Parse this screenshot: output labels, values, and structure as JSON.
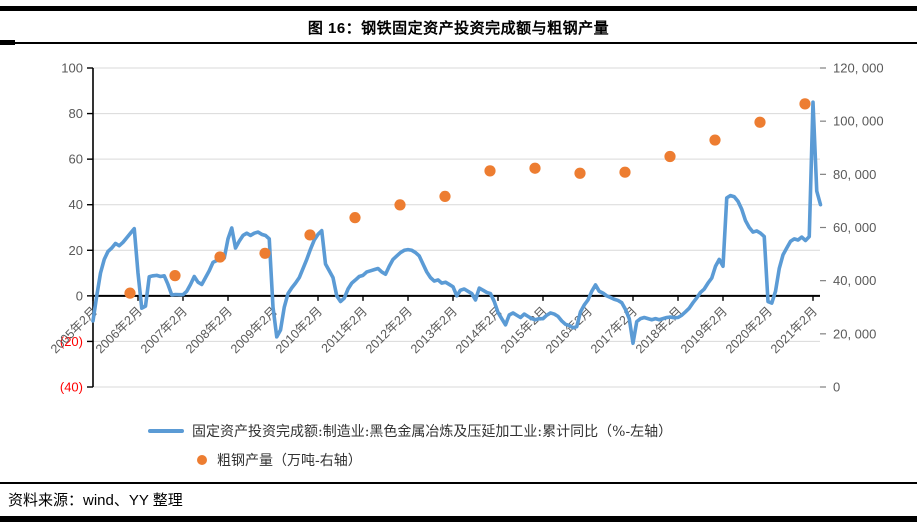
{
  "page": {
    "title": "图 16：钢铁固定资产投资完成额与粗钢产量",
    "source": "资料来源：wind、YY 整理"
  },
  "legend": {
    "line_label": "固定资产投资完成额:制造业:黑色金属冶炼及压延加工业:累计同比（%-左轴）",
    "dot_label": "粗钢产量（万吨-右轴）"
  },
  "colors": {
    "line": "#5B9BD5",
    "dot": "#ED7D31",
    "axis_text": "#595959",
    "negative_text": "#FF0000",
    "gridline": "#D9D9D9",
    "axis_line": "#000000",
    "right_tick": "#808080"
  },
  "chart_data": {
    "type": "line+scatter",
    "title": "图 16：钢铁固定资产投资完成额与粗钢产量",
    "grid": "horizontal",
    "left_axis": {
      "min": -40,
      "max": 100,
      "step": 20,
      "tick_labels": [
        "100",
        "80",
        "60",
        "40",
        "20",
        "0",
        "(20)",
        "(40)"
      ],
      "negative_in_red_parentheses": true
    },
    "right_axis": {
      "min": 0,
      "max": 120000,
      "step": 20000,
      "tick_labels": [
        "120, 000",
        "100, 000",
        "80, 000",
        "60, 000",
        "40, 000",
        "20, 000",
        "0"
      ]
    },
    "x_tick_labels": [
      "2005年2月",
      "2006年2月",
      "2007年2月",
      "2008年2月",
      "2009年2月",
      "2010年2月",
      "2011年2月",
      "2012年2月",
      "2013年2月",
      "2014年2月",
      "2015年2月",
      "2016年2月",
      "2017年2月",
      "2018年2月",
      "2019年2月",
      "2020年2月",
      "2021年2月"
    ],
    "line_series": {
      "name": "固定资产投资完成额:制造业:黑色金属冶炼及压延加工业:累计同比（%-左轴）",
      "axis": "left",
      "start": "2005-02",
      "freq": "monthly",
      "values": [
        -11,
        0,
        10,
        16,
        19.5,
        21,
        23,
        22,
        23.5,
        25.5,
        27.5,
        29.5,
        10,
        -5.4,
        -4.5,
        8.4,
        8.8,
        9,
        8.5,
        8.8,
        5,
        0.4,
        0.6,
        0.5,
        0.5,
        2,
        5,
        8.5,
        6,
        5,
        8,
        11,
        14.7,
        15.5,
        16,
        16.6,
        25,
        29.8,
        21,
        24,
        26.5,
        27.5,
        26.5,
        27.5,
        28,
        27,
        26.5,
        25,
        -5,
        -18,
        -15,
        -5,
        1,
        3.5,
        5.6,
        8,
        12,
        16,
        20.5,
        24.5,
        27,
        28.6,
        14,
        11,
        8,
        0,
        -2.5,
        -1,
        3,
        5.6,
        7,
        8.5,
        9,
        10.5,
        11,
        11.5,
        12,
        10.5,
        9.5,
        13,
        16,
        17.5,
        19,
        20,
        20.3,
        20,
        19,
        17.5,
        14,
        10.5,
        8,
        6.5,
        7,
        5.6,
        6,
        5,
        4,
        0,
        2.5,
        3,
        2,
        1,
        -1.8,
        3.4,
        2.5,
        1.5,
        1,
        -2.5,
        -7.3,
        -10,
        -12.7,
        -8.4,
        -7.5,
        -8.5,
        -9.5,
        -8,
        -9,
        -10,
        -10.5,
        -10,
        -10,
        -8.5,
        -7.5,
        -8,
        -9,
        -11,
        -12.5,
        -13,
        -14,
        -13.5,
        -7,
        -4,
        -1.8,
        2,
        4.8,
        2,
        1.2,
        0,
        -0.7,
        -1.5,
        -2,
        -3,
        -6,
        -10,
        -20.8,
        -11.3,
        -10,
        -9.5,
        -10,
        -10.5,
        -10,
        -10.5,
        -10,
        -9.5,
        -9.3,
        -9.6,
        -9.5,
        -8.5,
        -7,
        -5.4,
        -3,
        -0.9,
        1.5,
        3,
        5.6,
        7.8,
        13,
        16,
        13,
        43,
        44,
        43.5,
        41.5,
        38,
        33,
        30,
        28,
        28.5,
        27.5,
        26,
        -2.5,
        -3.2,
        2,
        12,
        18,
        21,
        23.9,
        25,
        24.5,
        25.8,
        24.3,
        26,
        85,
        46,
        40
      ]
    },
    "scatter_series": {
      "name": "粗钢产量（万吨-右轴）",
      "axis": "right",
      "points": [
        {
          "label": "2006年2月",
          "value": 35300
        },
        {
          "label": "2007年2月",
          "value": 41900
        },
        {
          "label": "2008年2月",
          "value": 48900
        },
        {
          "label": "2009年2月",
          "value": 50300
        },
        {
          "label": "2010年2月",
          "value": 57200
        },
        {
          "label": "2011年2月",
          "value": 63700
        },
        {
          "label": "2012年2月",
          "value": 68500
        },
        {
          "label": "2013年2月",
          "value": 71700
        },
        {
          "label": "2014年2月",
          "value": 81300
        },
        {
          "label": "2015年2月",
          "value": 82300
        },
        {
          "label": "2016年2月",
          "value": 80400
        },
        {
          "label": "2017年2月",
          "value": 80800
        },
        {
          "label": "2018年2月",
          "value": 86700
        },
        {
          "label": "2019年2月",
          "value": 92900
        },
        {
          "label": "2020年2月",
          "value": 99600
        },
        {
          "label": "2021年2月",
          "value": 106500
        }
      ]
    }
  }
}
